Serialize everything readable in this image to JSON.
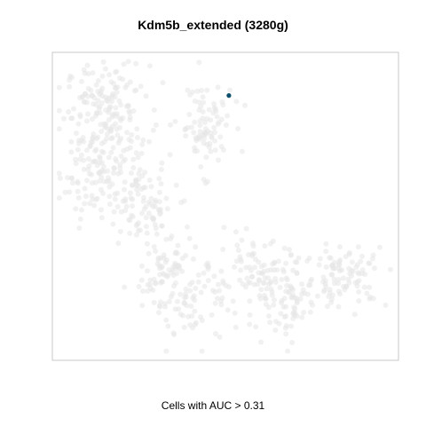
{
  "chart_data": {
    "type": "scatter",
    "title": "Kdm5b_extended (3280g)",
    "caption": "Cells with AUC > 0.31",
    "xlabel": "",
    "ylabel": "",
    "grid": false,
    "axes_visible": false,
    "xlim": [
      0,
      100
    ],
    "ylim": [
      0,
      100
    ],
    "colors": {
      "background_cells": "#e6e6e6",
      "highlighted_cells": "#0b4f6c",
      "frame": "#c8c8c8"
    },
    "series": [
      {
        "name": "background",
        "approx_count": 850,
        "regions": [
          {
            "shape": "left-arm",
            "x": [
              5,
              35
            ],
            "y": [
              35,
              95
            ]
          },
          {
            "shape": "upper-middle",
            "x": [
              30,
              55
            ],
            "y": [
              55,
              90
            ]
          },
          {
            "shape": "lower-arm",
            "x": [
              30,
              97
            ],
            "y": [
              5,
              38
            ]
          }
        ]
      },
      {
        "name": "highlighted",
        "points": [
          {
            "x": 51,
            "y": 86
          }
        ]
      }
    ]
  }
}
